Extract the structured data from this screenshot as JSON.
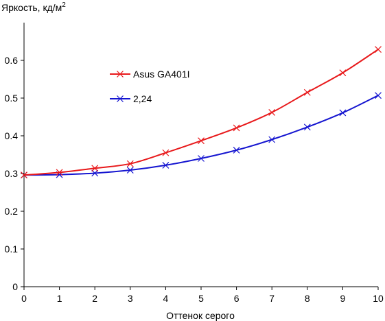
{
  "chart_data": {
    "type": "line",
    "xlabel": "Оттенок серого",
    "ylabel": "Яркость, кд/м",
    "ylabel_sup": "2",
    "x": [
      0,
      1,
      2,
      3,
      4,
      5,
      6,
      7,
      8,
      9,
      10
    ],
    "xlim": [
      0,
      10
    ],
    "ylim": [
      0,
      0.7
    ],
    "x_ticks": [
      "0",
      "1",
      "2",
      "3",
      "4",
      "5",
      "6",
      "7",
      "8",
      "9",
      "10"
    ],
    "y_ticks": [
      {
        "value": 0,
        "label": "0"
      },
      {
        "value": 0.1,
        "label": "0.1"
      },
      {
        "value": 0.2,
        "label": "0.2"
      },
      {
        "value": 0.3,
        "label": "0.3"
      },
      {
        "value": 0.4,
        "label": "0.4"
      },
      {
        "value": 0.5,
        "label": "0.5"
      },
      {
        "value": 0.6,
        "label": "0.6"
      }
    ],
    "grid": false,
    "legend_position": "top-left",
    "series": [
      {
        "name": "Asus GA401I",
        "color": "#e8191b",
        "marker": "x",
        "values": [
          0.296,
          0.303,
          0.314,
          0.326,
          0.355,
          0.387,
          0.421,
          0.462,
          0.515,
          0.567,
          0.629
        ]
      },
      {
        "name": "2,24",
        "color": "#1515d0",
        "marker": "x",
        "values": [
          0.296,
          0.297,
          0.301,
          0.309,
          0.322,
          0.34,
          0.362,
          0.39,
          0.423,
          0.461,
          0.507
        ]
      }
    ]
  }
}
